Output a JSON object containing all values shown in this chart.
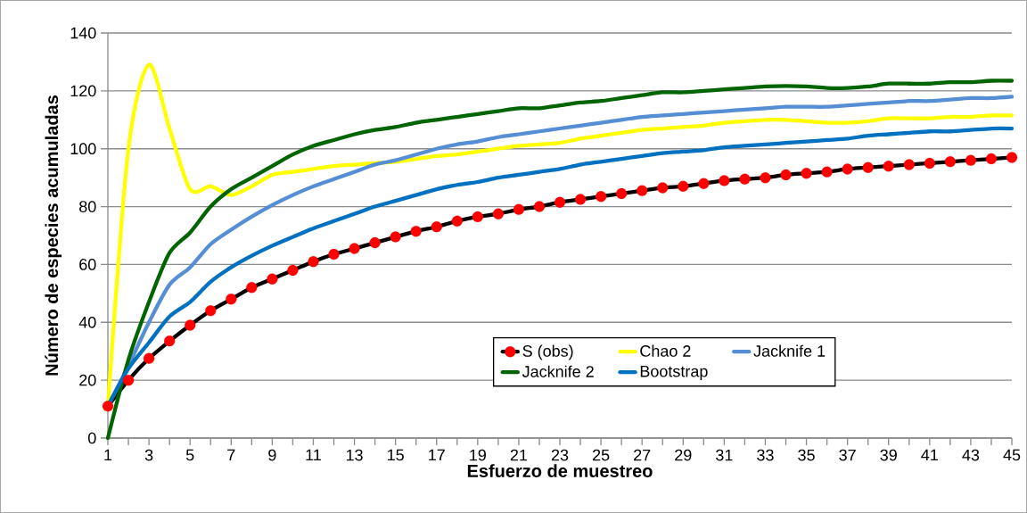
{
  "chart_data": {
    "type": "line",
    "xlabel": "Esfuerzo de muestreo",
    "ylabel": "Número de especies  acumuladas",
    "x": [
      1,
      2,
      3,
      4,
      5,
      6,
      7,
      8,
      9,
      10,
      11,
      12,
      13,
      14,
      15,
      16,
      17,
      18,
      19,
      20,
      21,
      22,
      23,
      24,
      25,
      26,
      27,
      28,
      29,
      30,
      31,
      32,
      33,
      34,
      35,
      36,
      37,
      38,
      39,
      40,
      41,
      42,
      43,
      44,
      45
    ],
    "series": [
      {
        "name": "S (obs)",
        "color": "#ff0000",
        "marker": "circle",
        "values": [
          11,
          20,
          27.5,
          33.5,
          39,
          44,
          48,
          52,
          55,
          58,
          61,
          63.5,
          65.5,
          67.5,
          69.5,
          71.5,
          73,
          75,
          76.5,
          77.5,
          79,
          80,
          81.5,
          82.5,
          83.5,
          84.5,
          85.5,
          86.5,
          87,
          88,
          89,
          89.5,
          90,
          91,
          91.5,
          92,
          93,
          93.5,
          94,
          94.5,
          95,
          95.5,
          96,
          96.5,
          97
        ]
      },
      {
        "name": "Chao 2",
        "color": "#ffff00",
        "marker": "none",
        "values": [
          11,
          100,
          129,
          107,
          86,
          87,
          84,
          87,
          91,
          92,
          93,
          94,
          94.5,
          95,
          95.5,
          96.5,
          97.5,
          98,
          99,
          100,
          101,
          101.5,
          102,
          103.5,
          104.5,
          105.5,
          106.5,
          107,
          107.5,
          108,
          109,
          109.5,
          110,
          110,
          109.5,
          109,
          109,
          109.5,
          110.5,
          110.5,
          110.5,
          111,
          111,
          111.5,
          111.5
        ]
      },
      {
        "name": "Jacknife 1",
        "color": "#558ed5",
        "marker": "none",
        "values": [
          11,
          25,
          40,
          53,
          59,
          67,
          72,
          76.5,
          80.5,
          84,
          87,
          89.5,
          92,
          94.5,
          96,
          98,
          100,
          101.5,
          102.5,
          104,
          105,
          106,
          107,
          108,
          109,
          110,
          111,
          111.5,
          112,
          112.5,
          113,
          113.5,
          114,
          114.5,
          114.5,
          114.5,
          115,
          115.5,
          116,
          116.5,
          116.5,
          117,
          117.5,
          117.5,
          118
        ]
      },
      {
        "name": "Jacknife 2",
        "color": "#006400",
        "marker": "none",
        "values": [
          0,
          27,
          47,
          64,
          71,
          80,
          86,
          90,
          94,
          98,
          101,
          103,
          105,
          106.5,
          107.5,
          109,
          110,
          111,
          112,
          113,
          114,
          114,
          115,
          116,
          116.5,
          117.5,
          118.5,
          119.5,
          119.5,
          120,
          120.5,
          121,
          121.5,
          121.7,
          121.5,
          121,
          121,
          121.5,
          122.5,
          122.5,
          122.5,
          123,
          123,
          123.5,
          123.5
        ]
      },
      {
        "name": "Bootstrap",
        "color": "#0070c0",
        "marker": "none",
        "values": [
          11,
          24,
          33,
          42,
          47,
          54,
          59,
          63,
          66.5,
          69.5,
          72.5,
          75,
          77.5,
          80,
          82,
          84,
          86,
          87.5,
          88.5,
          90,
          91,
          92,
          93,
          94.5,
          95.5,
          96.5,
          97.5,
          98.5,
          99,
          99.5,
          100.5,
          101,
          101.5,
          102,
          102.5,
          103,
          103.5,
          104.5,
          105,
          105.5,
          106,
          106,
          106.5,
          107,
          107
        ]
      }
    ],
    "xlim": [
      1,
      45
    ],
    "xticks": [
      1,
      {
        "value": 2,
        "label": null
      },
      3,
      {
        "value": 4,
        "label": null
      },
      5,
      {
        "value": 6,
        "label": null
      },
      7,
      {
        "value": 8,
        "label": null
      },
      9,
      {
        "value": 10,
        "label": null
      },
      11,
      {
        "value": 12,
        "label": null
      },
      13,
      {
        "value": 14,
        "label": null
      },
      15,
      {
        "value": 16,
        "label": null
      },
      17,
      {
        "value": 18,
        "label": null
      },
      19,
      {
        "value": 20,
        "label": null
      },
      21,
      {
        "value": 22,
        "label": null
      },
      23,
      {
        "value": 24,
        "label": null
      },
      25,
      {
        "value": 26,
        "label": null
      },
      27,
      {
        "value": 28,
        "label": null
      },
      29,
      {
        "value": 30,
        "label": null
      },
      31,
      {
        "value": 32,
        "label": null
      },
      33,
      {
        "value": 34,
        "label": null
      },
      35,
      {
        "value": 36,
        "label": null
      },
      37,
      {
        "value": 38,
        "label": null
      },
      39,
      {
        "value": 40,
        "label": null
      },
      41,
      {
        "value": 42,
        "label": null
      },
      43,
      {
        "value": 44,
        "label": null
      },
      45
    ],
    "ylim": [
      0,
      140
    ],
    "yticks": [
      0,
      20,
      40,
      60,
      80,
      100,
      120,
      140
    ],
    "grid": "y",
    "legend": "bottom right"
  }
}
